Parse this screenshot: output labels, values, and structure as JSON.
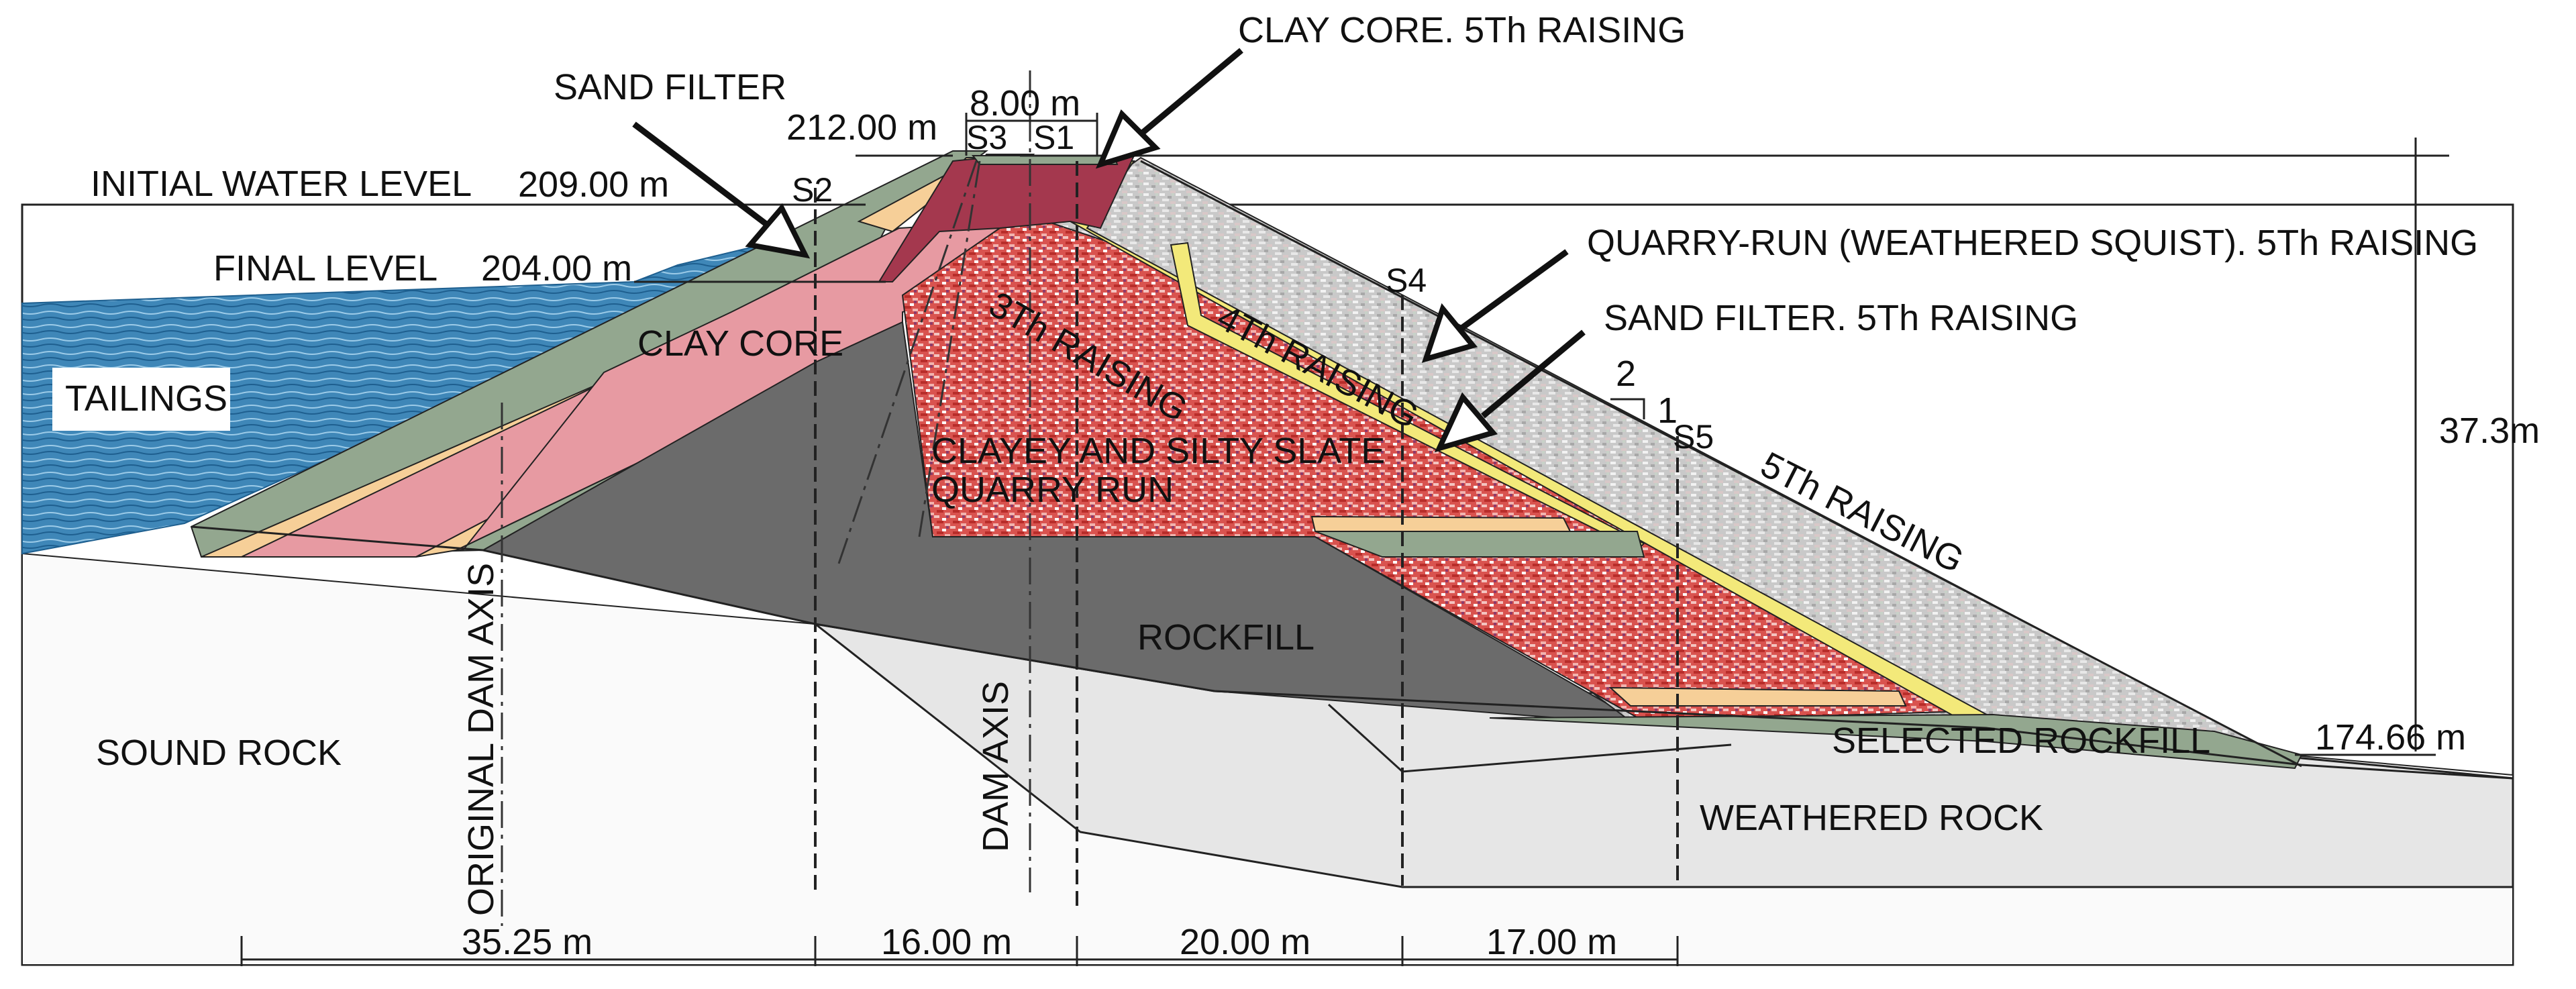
{
  "colors": {
    "tailings": "#3f87b8",
    "clay_core": "#e79aa2",
    "clay_core_5th": "#a4384e",
    "sand_filter": "#f6cf98",
    "sand_filter_5th": "#f3e97a",
    "transition": "#93a78f",
    "rockfill": "#6b6b6b",
    "slate_quarry_run": "#d9534f",
    "quarry_run_5th": "#c9c9c9",
    "weathered_rock": "#e6e6e6",
    "sound_rock": "#fafafa"
  },
  "labels": {
    "clay_core_5th": "CLAY CORE. 5Th RAISING",
    "sand_filter": "SAND FILTER",
    "initial_water_level": "INITIAL WATER LEVEL",
    "final_level": "FINAL LEVEL",
    "tailings": "TAILINGS",
    "clay_core": "CLAY CORE",
    "quarry_run_5th": "QUARRY-RUN (WEATHERED SQUIST). 5Th RAISING",
    "sand_filter_5th": "SAND FILTER. 5Th RAISING",
    "raising_3": "3Th RAISING",
    "raising_4": "4Th RAISING",
    "raising_5": "5Th RAISING",
    "slate_line1": "CLAYEY AND SILTY SLATE",
    "slate_line2": "QUARRY RUN",
    "rockfill": "ROCKFILL",
    "sound_rock": "SOUND ROCK",
    "original_dam_axis": "ORIGINAL DAM AXIS",
    "dam_axis": "DAM AXIS",
    "selected_rockfill": "SELECTED ROCKFILL",
    "weathered_rock": "WEATHERED ROCK",
    "slope_h": "2",
    "slope_v": "1"
  },
  "sections": {
    "s1": "S1",
    "s2": "S2",
    "s3": "S3",
    "s4": "S4",
    "s5": "S5"
  },
  "dimensions": {
    "crest_elev": "212.00 m",
    "crest_width": "8.00 m",
    "initial_level": "209.00 m",
    "final_level": "204.00 m",
    "toe_elev": "174.66 m",
    "height": "37.3m",
    "span_1": "35.25 m",
    "span_2": "16.00 m",
    "span_3": "20.00 m",
    "span_4": "17.00 m"
  }
}
